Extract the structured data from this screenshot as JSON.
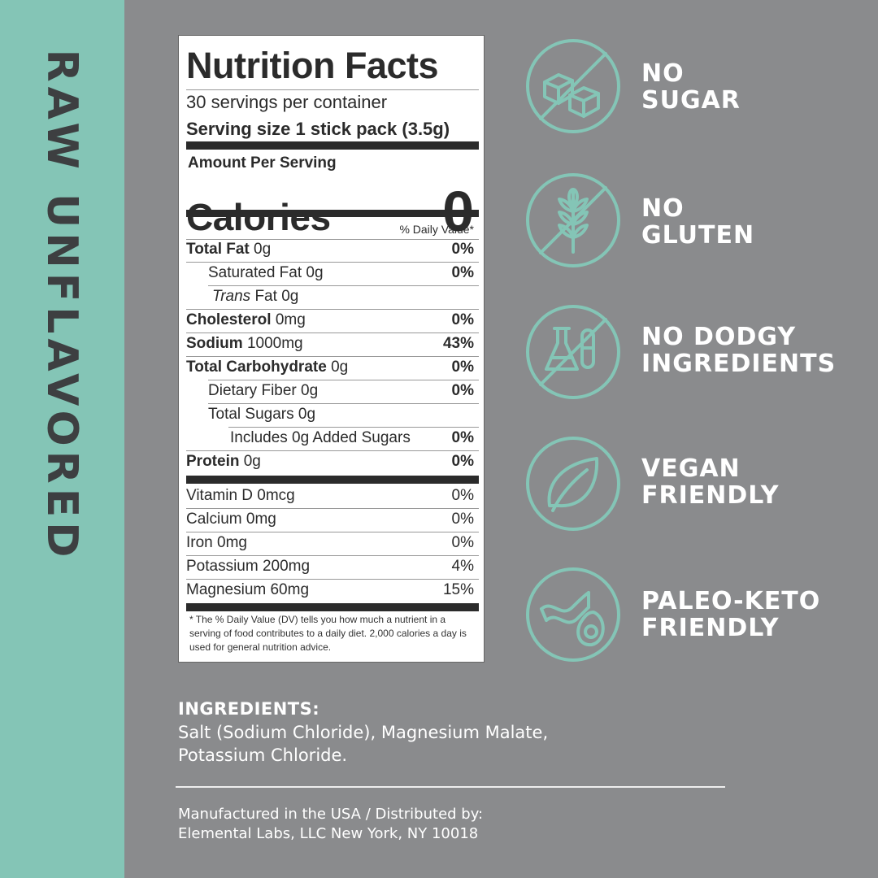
{
  "side_title": "RAW UNFLAVORED",
  "nutrition": {
    "title": "Nutrition Facts",
    "servings": "30 servings per container",
    "serving_size_label": "Serving size",
    "serving_size_value": "1 stick pack (3.5g)",
    "amount_per_serving": "Amount Per Serving",
    "calories_label": "Calories",
    "calories_value": "0",
    "dv_header": "% Daily Value*",
    "rows": [
      {
        "name": "Total Fat",
        "amount": "0g",
        "dv": "0%"
      },
      {
        "name": "Saturated Fat",
        "amount": "0g",
        "dv": "0%"
      },
      {
        "name_italic": "Trans",
        "name": "Fat",
        "amount": "0g",
        "dv": ""
      },
      {
        "name": "Cholesterol",
        "amount": "0mg",
        "dv": "0%"
      },
      {
        "name": "Sodium",
        "amount": "1000mg",
        "dv": "43%"
      },
      {
        "name": "Total Carbohydrate",
        "amount": "0g",
        "dv": "0%"
      },
      {
        "name": "Dietary Fiber",
        "amount": "0g",
        "dv": "0%"
      },
      {
        "name": "Total Sugars",
        "amount": "0g",
        "dv": ""
      },
      {
        "name": "Includes 0g Added Sugars",
        "amount": "",
        "dv": "0%"
      },
      {
        "name": "Protein",
        "amount": "0g",
        "dv": "0%"
      }
    ],
    "minerals": [
      {
        "text": "Vitamin D 0mcg",
        "dv": "0%"
      },
      {
        "text": "Calcium 0mg",
        "dv": "0%"
      },
      {
        "text": "Iron 0mg",
        "dv": "0%"
      },
      {
        "text": "Potassium 200mg",
        "dv": "4%"
      },
      {
        "text": "Magnesium 60mg",
        "dv": "15%"
      }
    ],
    "footnote": "* The % Daily Value (DV) tells you how much a nutrient in a serving of food contributes to a daily diet. 2,000 calories a day is used for general nutrition advice."
  },
  "claims": [
    {
      "line1": "NO",
      "line2": "SUGAR",
      "icon": "no-sugar-cubes-icon"
    },
    {
      "line1": "NO",
      "line2": "GLUTEN",
      "icon": "no-wheat-icon"
    },
    {
      "line1": "NO DODGY",
      "line2": "INGREDIENTS",
      "icon": "no-lab-flask-icon"
    },
    {
      "line1": "VEGAN",
      "line2": "FRIENDLY",
      "icon": "leaf-icon"
    },
    {
      "line1": "PALEO-KETO",
      "line2": "FRIENDLY",
      "icon": "bacon-avocado-icon"
    }
  ],
  "ingredients": {
    "heading": "INGREDIENTS:",
    "line1": "Salt (Sodium Chloride), Magnesium Malate,",
    "line2": "Potassium Chloride."
  },
  "manufacturer": {
    "line1": "Manufactured in the USA / Distributed by:",
    "line2": "Elemental Labs, LLC New York, NY 10018"
  },
  "colors": {
    "teal": "#84c5b6",
    "background_gray": "#8a8b8d",
    "dark_text": "#3d3f41",
    "white": "#ffffff"
  }
}
